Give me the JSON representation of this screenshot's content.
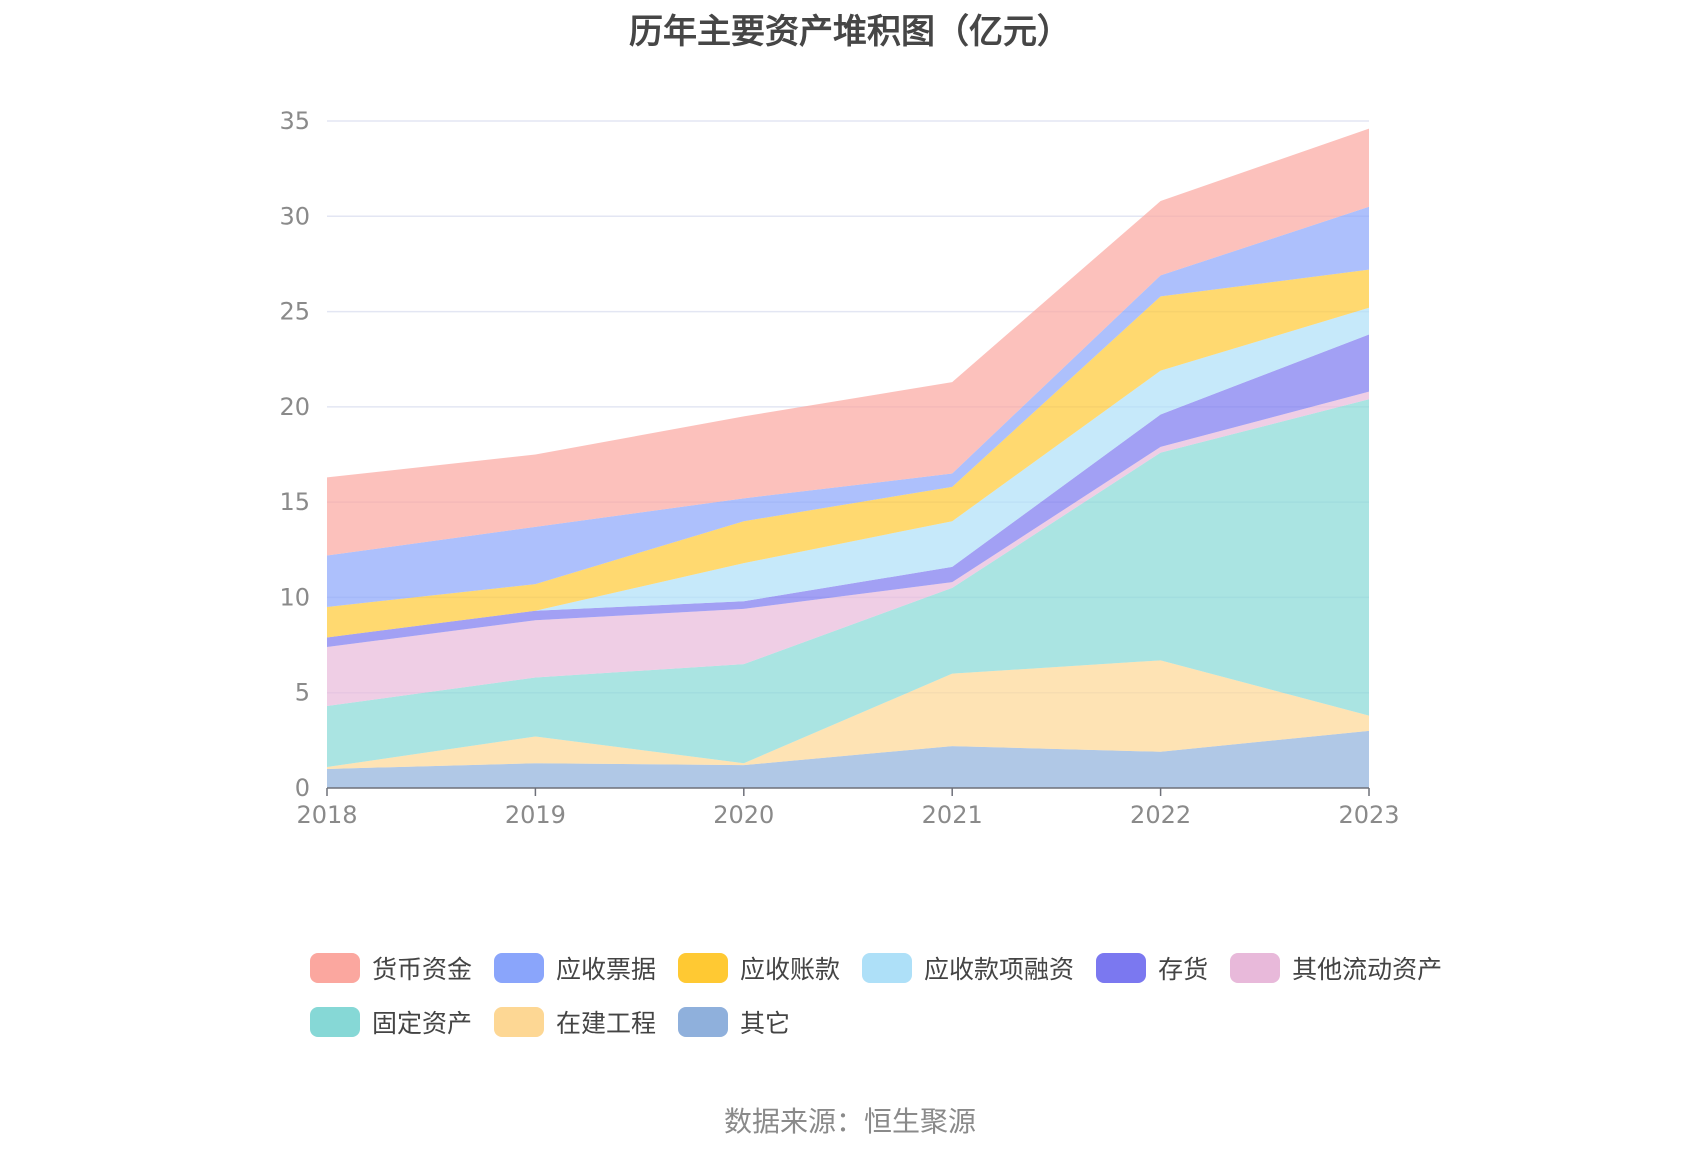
{
  "title": "历年主要资产堆积图（亿元）",
  "source": "数据来源：恒生聚源",
  "chart_data": {
    "type": "area",
    "stacked": true,
    "title": "历年主要资产堆积图（亿元）",
    "categories": [
      "2018",
      "2019",
      "2020",
      "2021",
      "2022",
      "2023"
    ],
    "ylim": [
      0,
      35
    ],
    "yticks": [
      0,
      5,
      10,
      15,
      20,
      25,
      30,
      35
    ],
    "grid": true,
    "legend_position": "bottom",
    "series": [
      {
        "name": "其它",
        "color": "#8fb0dc",
        "values": [
          1.0,
          1.3,
          1.2,
          2.2,
          1.9,
          3.0
        ]
      },
      {
        "name": "在建工程",
        "color": "#fdd794",
        "values": [
          0.1,
          1.4,
          0.1,
          3.8,
          4.8,
          0.8
        ]
      },
      {
        "name": "固定资产",
        "color": "#86d8d6",
        "values": [
          3.2,
          3.1,
          5.2,
          4.5,
          10.9,
          16.6
        ]
      },
      {
        "name": "其他流动资产",
        "color": "#e8b9da",
        "values": [
          3.1,
          3.0,
          2.9,
          0.3,
          0.3,
          0.4
        ]
      },
      {
        "name": "存货",
        "color": "#7b78f0",
        "values": [
          0.5,
          0.5,
          0.4,
          0.8,
          1.7,
          3.0
        ]
      },
      {
        "name": "应收款项融资",
        "color": "#aee0f8",
        "values": [
          0.0,
          0.0,
          2.0,
          2.4,
          2.3,
          1.4
        ]
      },
      {
        "name": "应收账款",
        "color": "#ffc933",
        "values": [
          1.6,
          1.4,
          2.2,
          1.8,
          3.9,
          2.0
        ]
      },
      {
        "name": "应收票据",
        "color": "#8aa5fb",
        "values": [
          2.7,
          3.0,
          1.2,
          0.7,
          1.1,
          3.3
        ]
      },
      {
        "name": "货币资金",
        "color": "#fba79f",
        "values": [
          4.1,
          3.8,
          4.3,
          4.8,
          3.9,
          4.1
        ]
      }
    ]
  }
}
